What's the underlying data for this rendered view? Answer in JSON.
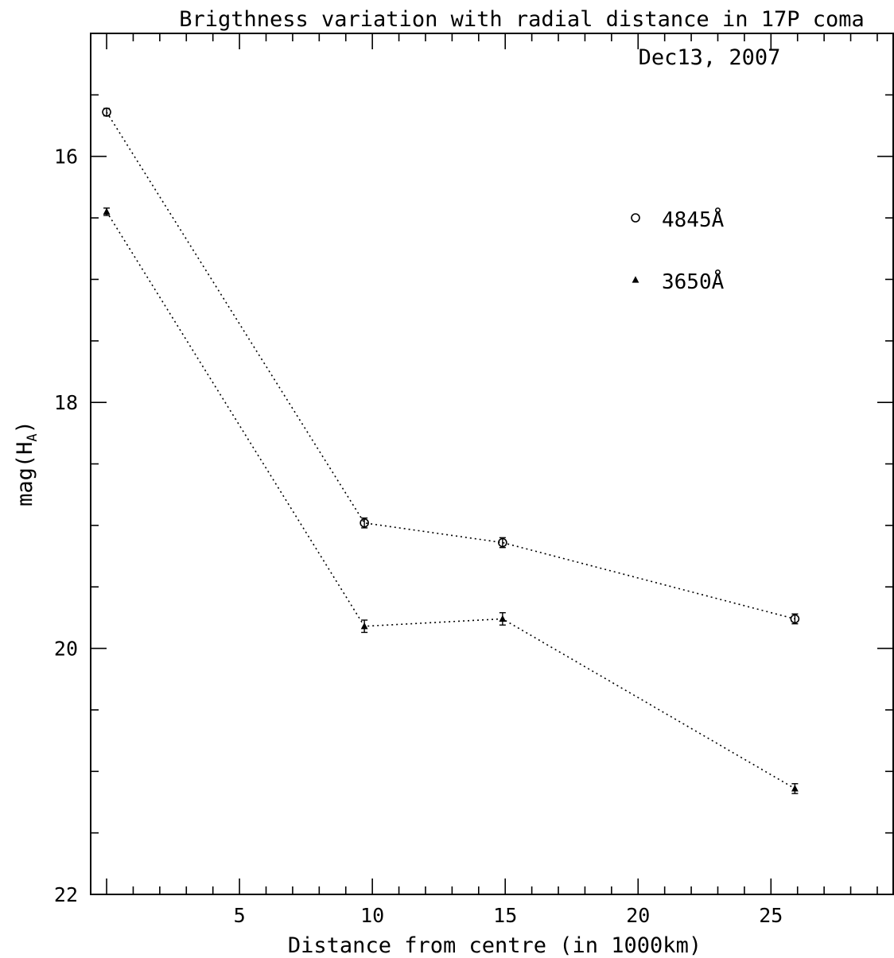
{
  "chart_data": {
    "type": "scatter",
    "title": "Brigthness variation with radial distance in 17P coma",
    "subtitle": "Dec13, 2007",
    "xlabel": "Distance from centre (in 1000km)",
    "ylabel_main": "mag(H",
    "ylabel_sub": "A",
    "ylabel_close": ")",
    "xlim": [
      -0.6,
      29.6
    ],
    "ylim": [
      22,
      15
    ],
    "y_inverted": true,
    "x_ticks": [
      5,
      10,
      15,
      20,
      25
    ],
    "x_tick_labels": [
      "5",
      "10",
      "15",
      "20",
      "25"
    ],
    "x_minor_step": 1,
    "y_ticks": [
      16,
      18,
      20,
      22
    ],
    "y_tick_labels": [
      "16",
      "18",
      "20",
      "22"
    ],
    "y_minor_step": 0.5,
    "legend_position": "right",
    "series": [
      {
        "name": "4845Å",
        "marker": "circle",
        "x": [
          0,
          9.7,
          14.9,
          25.9
        ],
        "y": [
          15.64,
          18.98,
          19.14,
          19.76
        ],
        "yerr": [
          0.03,
          0.04,
          0.04,
          0.04
        ]
      },
      {
        "name": "3650Å",
        "marker": "triangle",
        "x": [
          0,
          9.7,
          14.9,
          25.9
        ],
        "y": [
          16.45,
          19.82,
          19.76,
          21.14
        ],
        "yerr": [
          0.03,
          0.05,
          0.05,
          0.04
        ]
      }
    ]
  }
}
